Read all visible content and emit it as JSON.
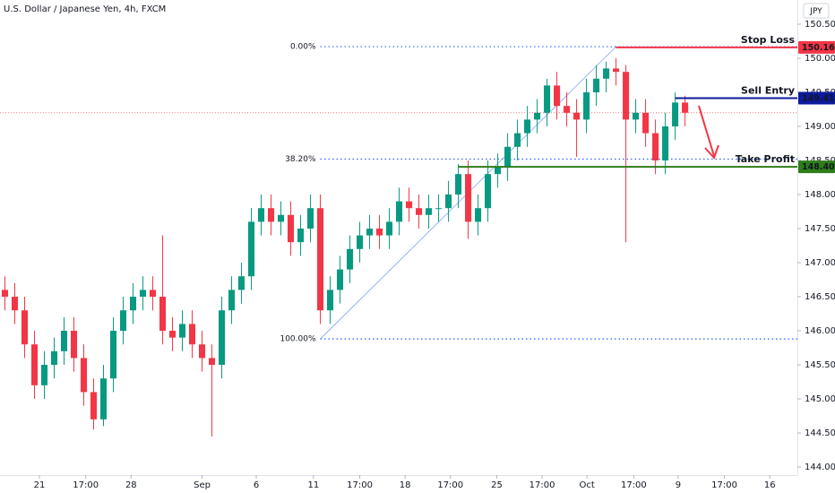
{
  "chart_data": {
    "type": "candlestick",
    "title": "U.S. Dollar / Japanese Yen, 4h, FXCM",
    "currency": "JPY",
    "up_color": "#089981",
    "down_color": "#f23645",
    "xlim": [
      -0.5,
      80.4
    ],
    "xticks": [
      {
        "value": 3.5,
        "label": "21"
      },
      {
        "value": 8.2,
        "label": "17:00"
      },
      {
        "value": 12.8,
        "label": "28"
      },
      {
        "value": 20,
        "label": "Sep"
      },
      {
        "value": 25.5,
        "label": "6"
      },
      {
        "value": 31.3,
        "label": "11"
      },
      {
        "value": 36,
        "label": "17:00"
      },
      {
        "value": 40.6,
        "label": "18"
      },
      {
        "value": 45.2,
        "label": "17:00"
      },
      {
        "value": 49.9,
        "label": "25"
      },
      {
        "value": 54.5,
        "label": "17:00"
      },
      {
        "value": 59.05,
        "label": "Oct"
      },
      {
        "value": 63.8,
        "label": "17:00"
      },
      {
        "value": 68.3,
        "label": "9"
      },
      {
        "value": 73,
        "label": "17:00"
      },
      {
        "value": 77.6,
        "label": "16"
      }
    ],
    "ylim": [
      143.882,
      150.855
    ],
    "yticks": [
      {
        "value": 144,
        "label": "144.000"
      },
      {
        "value": 144.5,
        "label": "144.500"
      },
      {
        "value": 145,
        "label": "145.000"
      },
      {
        "value": 145.5,
        "label": "145.500"
      },
      {
        "value": 146,
        "label": "146.000"
      },
      {
        "value": 146.5,
        "label": "146.500"
      },
      {
        "value": 147,
        "label": "147.000"
      },
      {
        "value": 147.5,
        "label": "147.500"
      },
      {
        "value": 148,
        "label": "148.000"
      },
      {
        "value": 148.5,
        "label": "148.500"
      },
      {
        "value": 149,
        "label": "149.000"
      },
      {
        "value": 149.5,
        "label": "149.500"
      },
      {
        "value": 150,
        "label": "150.000"
      },
      {
        "value": 150.5,
        "label": "150.500"
      }
    ],
    "open": [
      146.6,
      146.5,
      146.3,
      145.8,
      145.2,
      145.5,
      145.7,
      146.0,
      145.6,
      145.1,
      144.7,
      145.3,
      146.0,
      146.3,
      146.5,
      146.6,
      146.5,
      146.0,
      145.9,
      146.1,
      145.8,
      145.6,
      145.5,
      146.3,
      146.6,
      146.8,
      147.6,
      147.8,
      147.6,
      147.7,
      147.3,
      147.5,
      147.8,
      146.3,
      146.6,
      146.9,
      147.2,
      147.4,
      147.5,
      147.4,
      147.6,
      147.9,
      147.8,
      147.7,
      147.8,
      147.8,
      148.0,
      148.3,
      147.6,
      147.8,
      148.3,
      148.4,
      148.7,
      148.9,
      149.1,
      149.2,
      149.6,
      149.3,
      149.2,
      149.1,
      149.5,
      149.7,
      149.85,
      149.8,
      149.1,
      149.2,
      148.9,
      148.5,
      149.0,
      149.35
    ],
    "high": [
      146.8,
      146.7,
      146.5,
      146.0,
      145.7,
      145.9,
      146.2,
      146.2,
      145.8,
      145.3,
      145.5,
      146.2,
      146.5,
      146.7,
      146.8,
      146.8,
      147.4,
      146.2,
      146.3,
      146.3,
      146.0,
      145.8,
      146.5,
      146.8,
      147.0,
      147.8,
      148.0,
      148.0,
      147.9,
      147.9,
      147.7,
      148.0,
      148.0,
      146.8,
      147.1,
      147.4,
      147.6,
      147.7,
      147.7,
      147.8,
      148.1,
      148.1,
      148.0,
      148.0,
      148.0,
      148.2,
      148.45,
      148.5,
      148.0,
      148.5,
      148.6,
      148.9,
      149.1,
      149.3,
      149.4,
      149.7,
      149.8,
      149.5,
      149.4,
      149.7,
      149.9,
      149.95,
      150.0,
      149.9,
      149.4,
      149.4,
      149.1,
      149.2,
      149.5,
      149.45
    ],
    "low": [
      146.3,
      146.1,
      145.6,
      145.0,
      145.0,
      145.3,
      145.5,
      145.4,
      144.9,
      144.55,
      144.6,
      145.1,
      145.8,
      146.1,
      146.3,
      146.3,
      145.8,
      145.7,
      145.7,
      145.6,
      145.4,
      144.45,
      145.3,
      146.1,
      146.4,
      146.6,
      147.4,
      147.4,
      147.4,
      147.1,
      147.1,
      147.3,
      146.1,
      146.1,
      146.4,
      146.7,
      147.0,
      147.2,
      147.2,
      147.2,
      147.4,
      147.6,
      147.5,
      147.5,
      147.6,
      147.6,
      147.8,
      147.35,
      147.4,
      147.6,
      148.1,
      148.2,
      148.5,
      148.7,
      148.9,
      149.0,
      149.1,
      149.0,
      148.55,
      148.9,
      149.3,
      149.5,
      149.6,
      147.3,
      148.9,
      148.7,
      148.3,
      148.3,
      148.8,
      149.0
    ],
    "close": [
      146.5,
      146.3,
      145.8,
      145.2,
      145.5,
      145.7,
      146.0,
      145.6,
      145.1,
      144.7,
      145.3,
      146.0,
      146.3,
      146.5,
      146.6,
      146.5,
      146.0,
      145.9,
      146.1,
      145.8,
      145.6,
      145.5,
      146.3,
      146.6,
      146.8,
      147.6,
      147.8,
      147.6,
      147.7,
      147.3,
      147.5,
      147.8,
      146.3,
      146.6,
      146.9,
      147.2,
      147.4,
      147.5,
      147.4,
      147.6,
      147.9,
      147.8,
      147.7,
      147.8,
      147.8,
      148.0,
      148.3,
      147.6,
      147.8,
      148.3,
      148.4,
      148.7,
      148.9,
      149.1,
      149.2,
      149.6,
      149.3,
      149.2,
      149.1,
      149.5,
      149.7,
      149.85,
      149.8,
      149.1,
      149.2,
      148.9,
      148.5,
      149.0,
      149.35,
      149.2
    ],
    "levels": [
      {
        "name": "Stop Loss",
        "value": 150.16,
        "value_label": "150.160",
        "color": "#f23645",
        "x": 62
      },
      {
        "name": "Sell Entry",
        "value": 149.414,
        "value_label": "149.414",
        "color": "#0c1a9c",
        "x": 68
      },
      {
        "name": "Take Profit",
        "value": 148.406,
        "value_label": "148.406",
        "color": "#2e7d1a",
        "x": 46
      }
    ],
    "fib": {
      "x": [
        32,
        62
      ],
      "color": "#2962ff",
      "levels": [
        {
          "label": "0.00%",
          "value": 150.17
        },
        {
          "label": "38.20%",
          "value": 148.52
        },
        {
          "label": "100.00%",
          "value": 145.88
        }
      ]
    }
  }
}
